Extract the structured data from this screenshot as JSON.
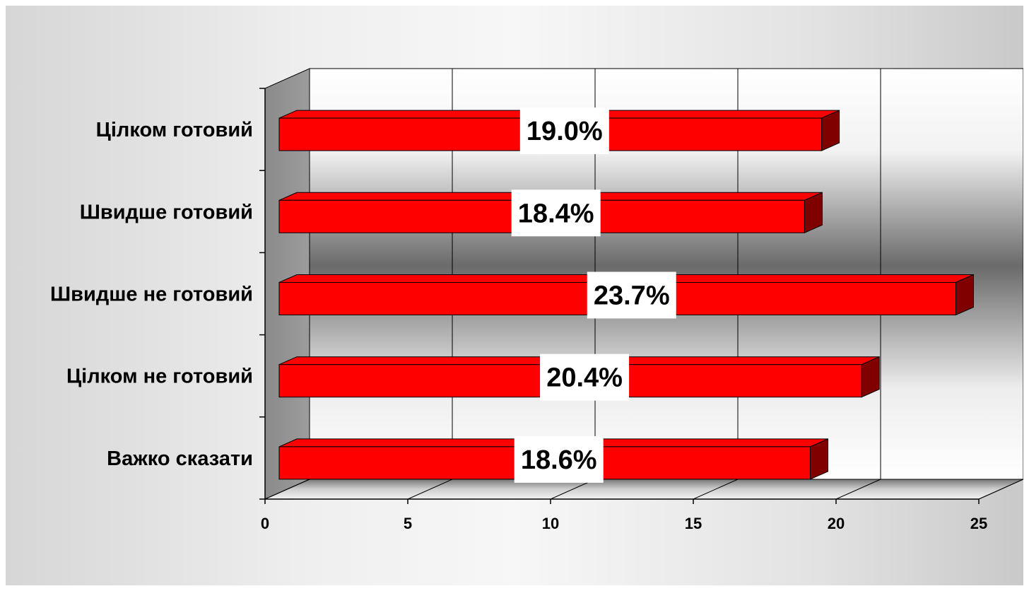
{
  "chart_data": {
    "type": "bar",
    "orientation": "horizontal",
    "style": "3d",
    "categories": [
      "Цілком готовий",
      "Швидше готовий",
      "Швидше не готовий",
      "Цілком не готовий",
      "Важко сказати"
    ],
    "values": [
      19.0,
      18.4,
      23.7,
      20.4,
      18.6
    ],
    "data_labels": [
      "19.0%",
      "18.4%",
      "23.7%",
      "20.4%",
      "18.6%"
    ],
    "title": "",
    "xlabel": "",
    "ylabel": "",
    "xlim": [
      0,
      25
    ],
    "x_ticks": [
      "0",
      "5",
      "10",
      "15",
      "20",
      "25"
    ],
    "grid": true,
    "legend": false,
    "bar_color": "#ff0000",
    "bar_side_color": "#800000"
  }
}
